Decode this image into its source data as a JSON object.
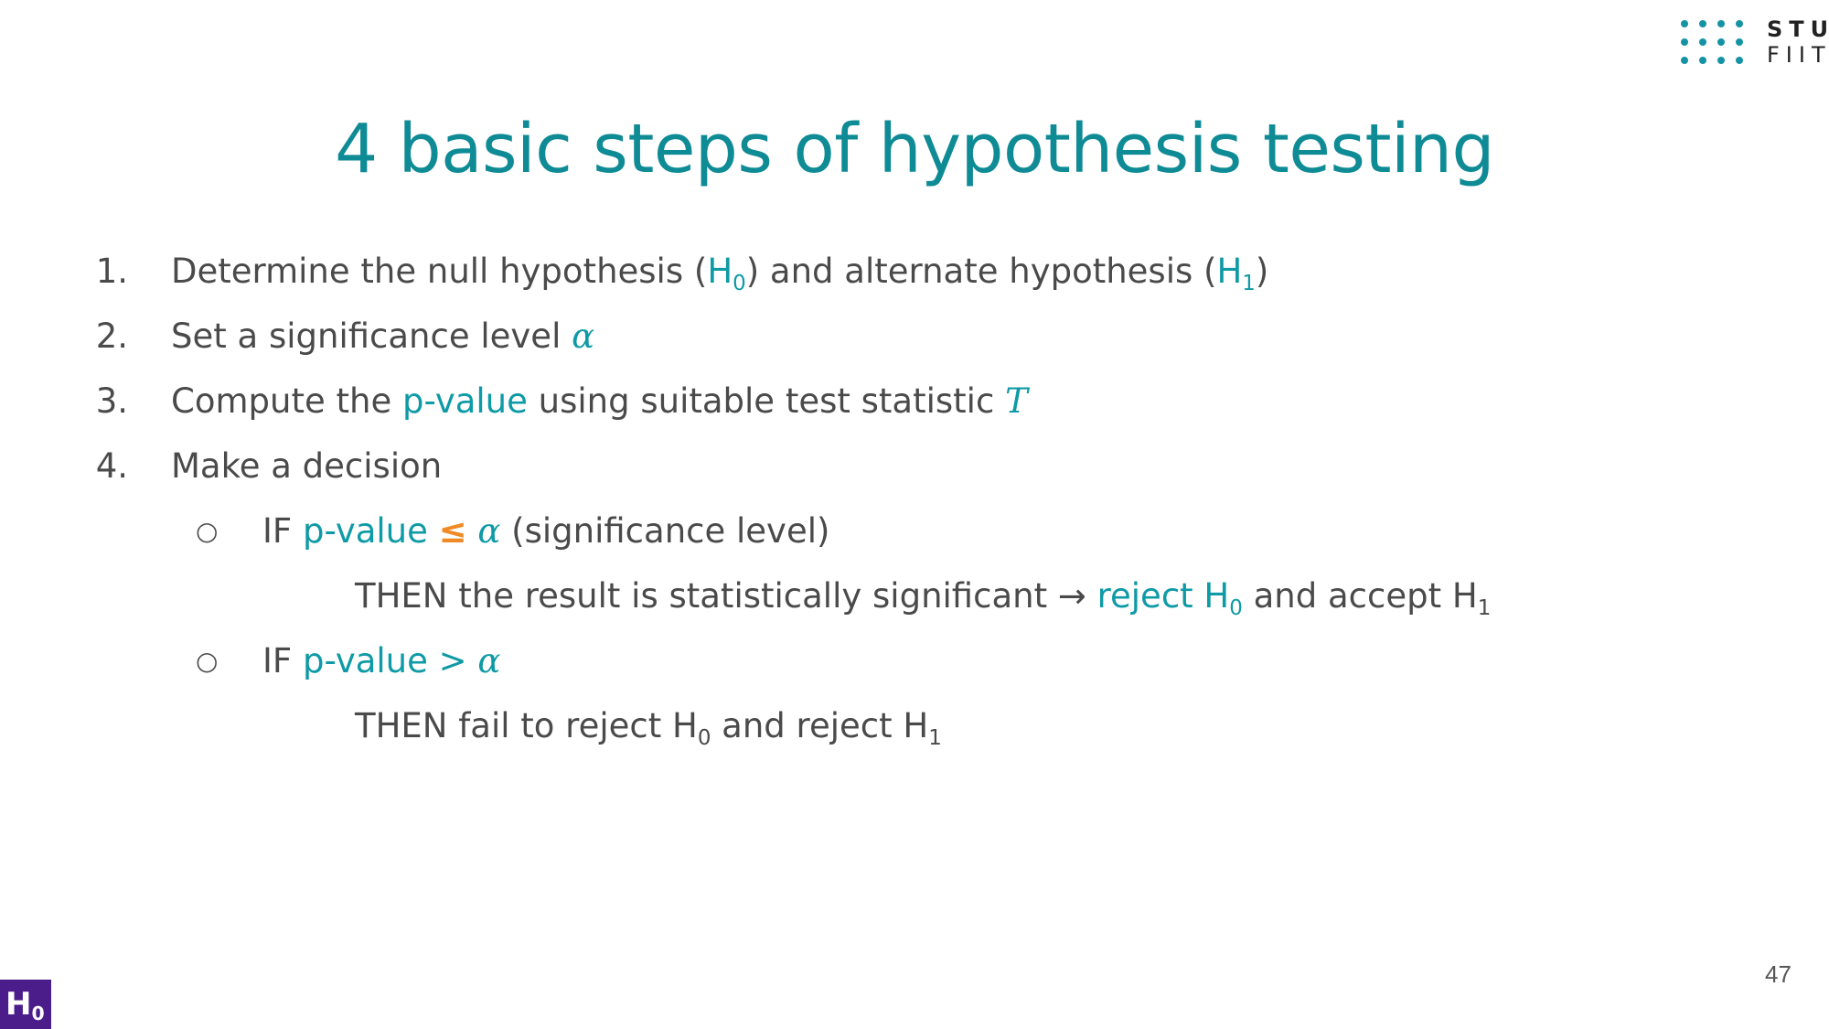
{
  "logo": {
    "line1": "STU",
    "line2": "FIIT"
  },
  "title": "4 basic steps of hypothesis testing",
  "steps": [
    {
      "num": "1.",
      "pre": "Determine the null hypothesis (",
      "h0": "H",
      "h0sub": "0",
      "mid": ") and alternate hypothesis (",
      "h1": "H",
      "h1sub": "1",
      "post": ")"
    },
    {
      "num": "2.",
      "pre": "Set a significance level ",
      "sym": "α"
    },
    {
      "num": "3.",
      "pre": "Compute the ",
      "hl": "p-value",
      "mid": " using suitable test statistic ",
      "sym": "T"
    },
    {
      "num": "4.",
      "pre": "Make a decision"
    }
  ],
  "decisions": [
    {
      "bullet": "○",
      "if": "IF ",
      "pv": "p-value ",
      "op": "≤",
      "sym": " α",
      "rest": " (significance level)",
      "then": "THEN the result is statistically significant → ",
      "reject": "reject H",
      "reject_sub": "0",
      "and": " and accept H",
      "and_sub": "1"
    },
    {
      "bullet": "○",
      "if": "IF ",
      "pv": "p-value > ",
      "sym": "α",
      "then": "THEN fail to reject H",
      "then_sub": "0",
      "and": " and reject H",
      "and_sub": "1"
    }
  ],
  "page_number": "47",
  "badge": {
    "h": "H",
    "sub": "0"
  }
}
